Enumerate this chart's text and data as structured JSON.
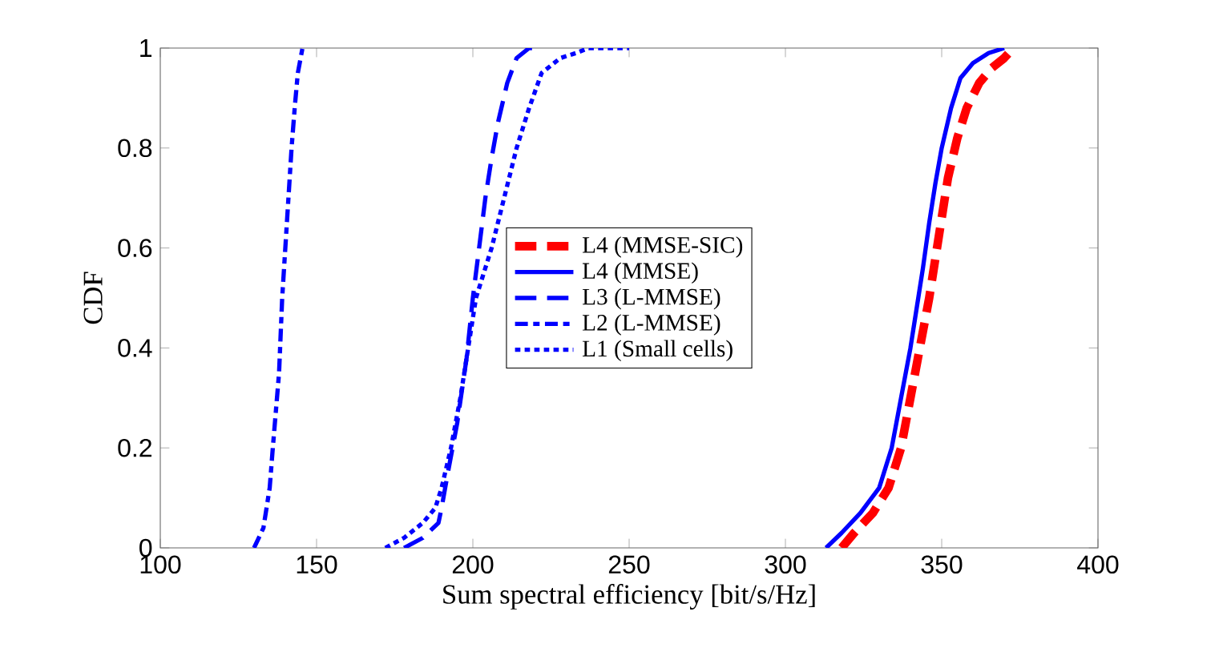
{
  "chart_data": {
    "type": "line",
    "xlabel": "Sum spectral efficiency [bit/s/Hz]",
    "ylabel": "CDF",
    "xlim": [
      100,
      400
    ],
    "ylim": [
      0,
      1
    ],
    "xticks": [
      100,
      150,
      200,
      250,
      300,
      350,
      400
    ],
    "yticks": [
      0,
      0.2,
      0.4,
      0.6,
      0.8,
      1
    ],
    "legend": "center",
    "grid": false,
    "series": [
      {
        "name": "L4 (MMSE-SIC)",
        "color": "#ff0000",
        "line_style": "dashed",
        "x": [
          318,
          322,
          328,
          333,
          337,
          340,
          343,
          346,
          348,
          350,
          352,
          355,
          358,
          362,
          366,
          370,
          373
        ],
        "values": [
          0,
          0.03,
          0.07,
          0.12,
          0.2,
          0.3,
          0.4,
          0.5,
          0.58,
          0.66,
          0.74,
          0.82,
          0.88,
          0.93,
          0.96,
          0.98,
          1
        ]
      },
      {
        "name": "L4 (MMSE)",
        "color": "#0000ff",
        "line_style": "solid",
        "x": [
          313,
          318,
          324,
          330,
          334,
          337,
          340,
          342,
          344,
          346,
          348,
          350,
          353,
          356,
          360,
          365,
          370
        ],
        "values": [
          0,
          0.03,
          0.07,
          0.12,
          0.2,
          0.3,
          0.4,
          0.48,
          0.56,
          0.65,
          0.73,
          0.8,
          0.88,
          0.94,
          0.97,
          0.99,
          1
        ]
      },
      {
        "name": "L3 (L-MMSE)",
        "color": "#0000ff",
        "line_style": "dashed",
        "x": [
          178,
          184,
          189,
          190,
          192,
          195,
          198,
          200,
          202,
          204,
          206,
          208,
          211,
          214,
          218,
          222
        ],
        "values": [
          0,
          0.02,
          0.05,
          0.08,
          0.15,
          0.25,
          0.38,
          0.5,
          0.6,
          0.7,
          0.78,
          0.85,
          0.93,
          0.98,
          1,
          1
        ]
      },
      {
        "name": "L2 (L-MMSE)",
        "color": "#0000ff",
        "line_style": "dashdot",
        "x": [
          130,
          133,
          135,
          136,
          138,
          139,
          140,
          141,
          142,
          143,
          144,
          145.5
        ],
        "values": [
          0,
          0.04,
          0.12,
          0.2,
          0.35,
          0.5,
          0.6,
          0.7,
          0.8,
          0.88,
          0.95,
          1
        ]
      },
      {
        "name": "L1 (Small cells)",
        "color": "#0000ff",
        "line_style": "dotted",
        "x": [
          172,
          178,
          184,
          188,
          190,
          193,
          196,
          199,
          201,
          204,
          206,
          210,
          214,
          218,
          222,
          228,
          233,
          237,
          250
        ],
        "values": [
          0,
          0.02,
          0.05,
          0.08,
          0.12,
          0.2,
          0.3,
          0.42,
          0.5,
          0.56,
          0.6,
          0.7,
          0.8,
          0.88,
          0.95,
          0.98,
          0.99,
          1,
          1
        ]
      }
    ]
  }
}
